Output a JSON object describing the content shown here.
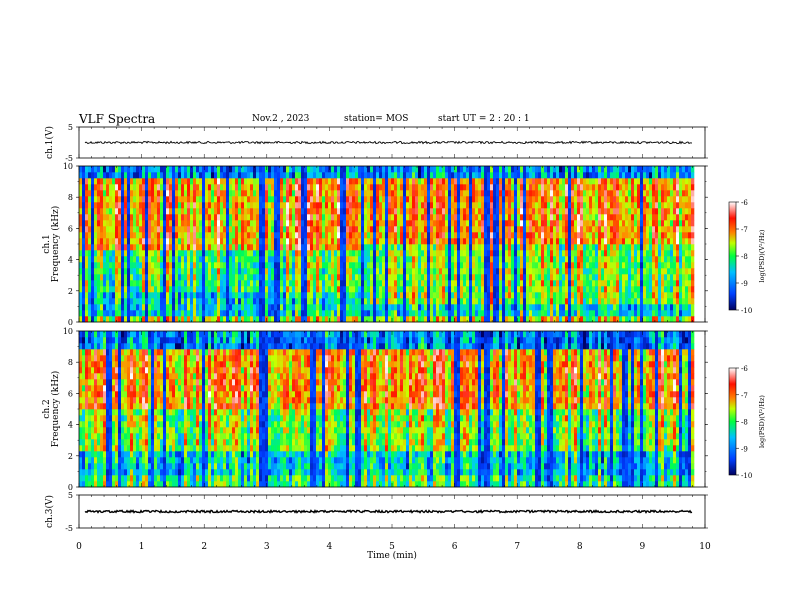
{
  "header": {
    "title": "VLF Spectra",
    "date": "Nov.2 , 2023",
    "station": "station= MOS",
    "start": "start UT = 2 : 20 : 1"
  },
  "colors": {
    "low": "#000080",
    "mid_low": "#0070ff",
    "mid": "#00ff60",
    "mid_high": "#ffff00",
    "high": "#ff2000",
    "top": "#ffffff"
  },
  "chart_data": [
    {
      "type": "line",
      "id": "ch1-waveform",
      "ylabel": "ch.1(V)",
      "ylim": [
        -5,
        5
      ],
      "yticks": [
        "5",
        "-5"
      ],
      "series": [
        {
          "x": [
            0,
            9.8
          ],
          "y": [
            0,
            0
          ]
        }
      ]
    },
    {
      "type": "heatmap",
      "id": "ch1-spectrogram",
      "ylabel": "ch.1\nFrequency (kHz)",
      "ylabel_lines": [
        "ch.1",
        "Frequency (kHz)"
      ],
      "ylim": [
        0,
        10
      ],
      "yticks": [
        "0",
        "2",
        "4",
        "6",
        "8",
        "10"
      ],
      "colorbar": {
        "label": "log(PSD)(V²/Hz)",
        "range": [
          -10,
          -6
        ],
        "ticks": [
          "-6",
          "-7",
          "-8",
          "-9",
          "-10"
        ]
      }
    },
    {
      "type": "heatmap",
      "id": "ch2-spectrogram",
      "ylabel": "ch.2\nFrequency (kHz)",
      "ylabel_lines": [
        "ch.2",
        "Frequency (kHz)"
      ],
      "ylim": [
        0,
        10
      ],
      "yticks": [
        "0",
        "2",
        "4",
        "6",
        "8",
        "10"
      ],
      "colorbar": {
        "label": "log(PSD)(V²/Hz)",
        "range": [
          -10,
          -6
        ],
        "ticks": [
          "-6",
          "-7",
          "-8",
          "-9",
          "-10"
        ]
      }
    },
    {
      "type": "line",
      "id": "ch3-waveform",
      "ylabel": "ch.3(V)",
      "ylim": [
        -5,
        5
      ],
      "yticks": [
        "5",
        "-5"
      ],
      "series": [
        {
          "x": [
            0,
            9.8
          ],
          "y": [
            0,
            0
          ]
        }
      ]
    }
  ],
  "xaxis": {
    "label": "Time (min)",
    "range": [
      0,
      10
    ],
    "ticks": [
      "0",
      "1",
      "2",
      "3",
      "4",
      "5",
      "6",
      "7",
      "8",
      "9",
      "10"
    ],
    "data_end": 9.8
  }
}
